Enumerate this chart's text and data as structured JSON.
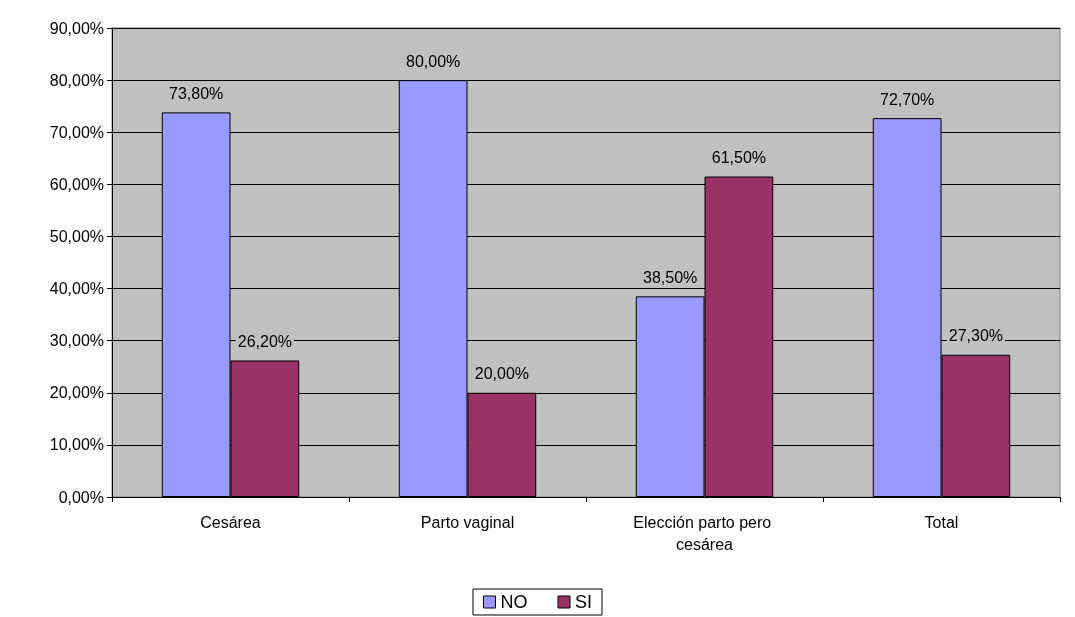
{
  "chart_data": {
    "type": "bar",
    "categories": [
      "Cesárea",
      "Parto vaginal",
      "Elección parto pero cesárea",
      "Total"
    ],
    "series": [
      {
        "name": "NO",
        "color": "#9999ff",
        "values": [
          73.8,
          80,
          38.5,
          72.7
        ],
        "value_labels": [
          "73,80%",
          "80,00%",
          "38,50%",
          "72,70%"
        ]
      },
      {
        "name": "SI",
        "color": "#993366",
        "values": [
          26.2,
          20,
          61.5,
          27.3
        ],
        "value_labels": [
          "26,20%",
          "20,00%",
          "61,50%",
          "27,30%"
        ]
      }
    ],
    "ylim": [
      0,
      90
    ],
    "yticks": [
      {
        "value": 0,
        "label": "0,00%"
      },
      {
        "value": 10,
        "label": "10,00%"
      },
      {
        "value": 20,
        "label": "20,00%"
      },
      {
        "value": 30,
        "label": "30,00%"
      },
      {
        "value": 40,
        "label": "40,00%"
      },
      {
        "value": 50,
        "label": "50,00%"
      },
      {
        "value": 60,
        "label": "60,00%"
      },
      {
        "value": 70,
        "label": "70,00%"
      },
      {
        "value": 80,
        "label": "80,00%"
      },
      {
        "value": 90,
        "label": "90,00%"
      }
    ],
    "grid": "y",
    "legend": "bottom"
  }
}
